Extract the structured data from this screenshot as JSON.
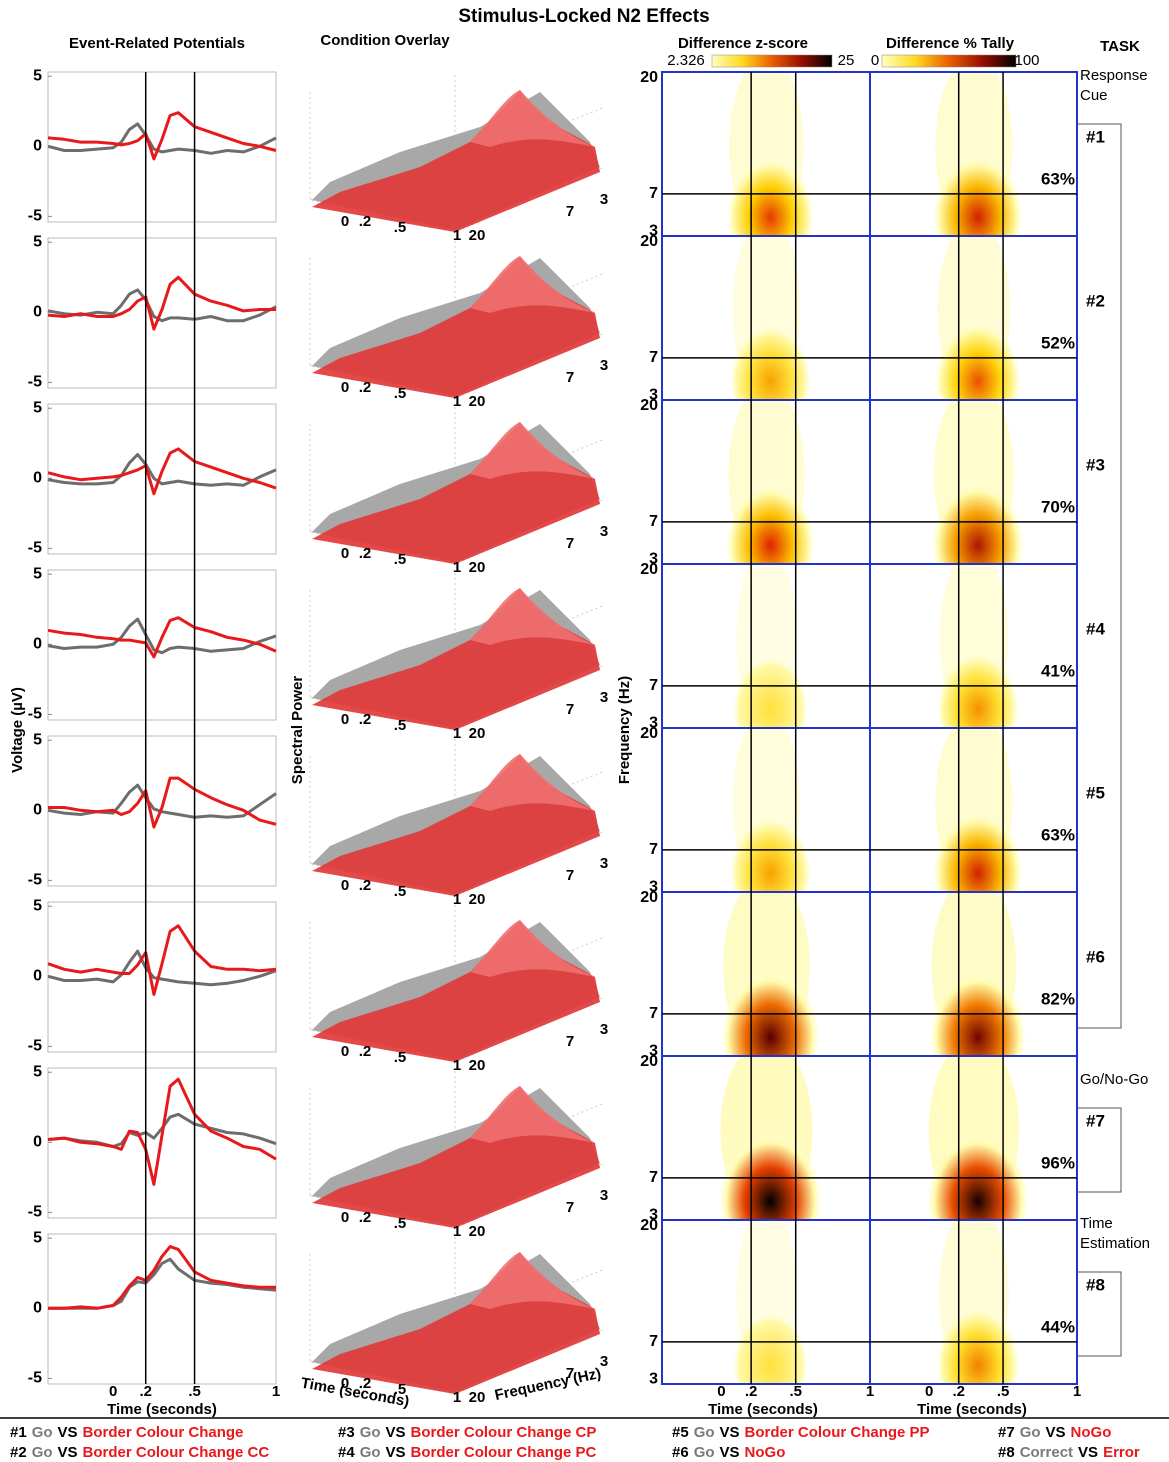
{
  "title": "Stimulus-Locked N2 Effects",
  "erp": {
    "header": "Event-Related Potentials",
    "ylabel": "Voltage (µV)",
    "xlabel": "Time (seconds)",
    "xlim": [
      -0.4,
      1
    ],
    "xticks": [
      0,
      {
        "value": 0.2,
        "label": ".2"
      },
      {
        "value": 0.5,
        "label": ".5"
      },
      1
    ],
    "ylim": [
      -5.4,
      5.3
    ],
    "yticks": [
      5,
      0,
      -5
    ],
    "x": [
      -0.4,
      -0.3,
      -0.2,
      -0.1,
      0,
      0.05,
      0.1,
      0.15,
      0.2,
      0.25,
      0.3,
      0.35,
      0.4,
      0.5,
      0.6,
      0.7,
      0.8,
      0.9,
      1
    ],
    "rows": [
      {
        "series": [
          {
            "color": "#6d6d6d",
            "values": [
              0,
              -0.3,
              -0.3,
              -0.2,
              -0.1,
              0.3,
              1.2,
              1.6,
              0.8,
              -0.2,
              -0.4,
              -0.3,
              -0.2,
              -0.3,
              -0.5,
              -0.3,
              -0.4,
              0,
              0.6
            ]
          },
          {
            "color": "#e8191b",
            "values": [
              0.6,
              0.5,
              0.3,
              0.3,
              0.2,
              0.1,
              0.2,
              0.4,
              0.9,
              -0.9,
              0.5,
              2.2,
              2.4,
              1.4,
              1.0,
              0.6,
              0.2,
              0,
              -0.3
            ]
          }
        ]
      },
      {
        "series": [
          {
            "color": "#6d6d6d",
            "values": [
              0.1,
              -0.1,
              -0.2,
              0,
              -0.1,
              0.5,
              1.3,
              1.6,
              0.9,
              -0.3,
              -0.6,
              -0.4,
              -0.4,
              -0.5,
              -0.3,
              -0.6,
              -0.6,
              -0.2,
              0.4
            ]
          },
          {
            "color": "#e8191b",
            "values": [
              -0.2,
              -0.3,
              -0.1,
              -0.3,
              -0.3,
              -0.1,
              0.2,
              0.8,
              1.1,
              -1.2,
              0.2,
              2.0,
              2.5,
              1.3,
              0.8,
              0.5,
              0.1,
              0.2,
              0.2
            ]
          }
        ]
      },
      {
        "series": [
          {
            "color": "#6d6d6d",
            "values": [
              -0.1,
              -0.3,
              -0.4,
              -0.4,
              -0.3,
              0.2,
              1.1,
              1.7,
              1.0,
              0,
              -0.4,
              -0.3,
              -0.2,
              -0.4,
              -0.5,
              -0.4,
              -0.5,
              0.1,
              0.6
            ]
          },
          {
            "color": "#e8191b",
            "values": [
              0.4,
              0.1,
              -0.1,
              0,
              0.1,
              0.2,
              0.4,
              0.6,
              0.9,
              -1.1,
              0.5,
              1.8,
              2.1,
              1.2,
              0.8,
              0.4,
              0,
              -0.3,
              -0.7
            ]
          }
        ]
      },
      {
        "series": [
          {
            "color": "#6d6d6d",
            "values": [
              -0.1,
              -0.3,
              -0.2,
              -0.2,
              0,
              0.5,
              1.3,
              1.8,
              0.7,
              -0.4,
              -0.6,
              -0.3,
              -0.2,
              -0.3,
              -0.5,
              -0.4,
              -0.3,
              0.2,
              0.6
            ]
          },
          {
            "color": "#e8191b",
            "values": [
              1.0,
              0.8,
              0.7,
              0.5,
              0.4,
              0.3,
              0.3,
              0.2,
              0.1,
              -0.9,
              0.5,
              1.7,
              1.9,
              1.2,
              0.9,
              0.5,
              0.3,
              0,
              -0.5
            ]
          }
        ]
      },
      {
        "series": [
          {
            "color": "#6d6d6d",
            "values": [
              0,
              -0.2,
              -0.3,
              -0.1,
              -0.2,
              0.5,
              1.3,
              1.8,
              0.9,
              0.1,
              -0.1,
              -0.2,
              -0.3,
              -0.5,
              -0.4,
              -0.5,
              -0.4,
              0.4,
              1.2
            ]
          },
          {
            "color": "#e8191b",
            "values": [
              0.2,
              0.2,
              0,
              -0.1,
              0,
              -0.3,
              -0.1,
              0.5,
              1.4,
              -1.2,
              0.2,
              2.3,
              2.3,
              1.5,
              0.9,
              0.4,
              0,
              -0.7,
              -1.0
            ]
          }
        ]
      },
      {
        "series": [
          {
            "color": "#6d6d6d",
            "values": [
              0,
              -0.3,
              -0.3,
              -0.2,
              -0.4,
              0.1,
              1.0,
              1.8,
              0.6,
              -0.1,
              -0.2,
              -0.3,
              -0.4,
              -0.5,
              -0.6,
              -0.5,
              -0.3,
              0,
              0.4
            ]
          },
          {
            "color": "#e8191b",
            "values": [
              0.9,
              0.5,
              0.3,
              0.5,
              0.3,
              0.2,
              0.2,
              0.8,
              1.7,
              -1.3,
              0.9,
              3.2,
              3.6,
              1.8,
              0.7,
              0.5,
              0.5,
              0.4,
              0.5
            ]
          }
        ]
      },
      {
        "series": [
          {
            "color": "#6d6d6d",
            "values": [
              0.2,
              0.3,
              0.1,
              0,
              -0.3,
              -0.1,
              0.7,
              0.5,
              0.7,
              0.3,
              1.0,
              1.8,
              2.0,
              1.3,
              1.0,
              0.7,
              0.6,
              0.3,
              -0.1
            ]
          },
          {
            "color": "#e8191b",
            "values": [
              0.2,
              0.3,
              0,
              -0.1,
              -0.3,
              -0.5,
              0.8,
              0.7,
              -0.5,
              -3.0,
              0.5,
              4.0,
              4.5,
              2.0,
              0.8,
              0.3,
              -0.3,
              -0.5,
              -1.2
            ]
          }
        ]
      },
      {
        "series": [
          {
            "color": "#6d6d6d",
            "values": [
              0,
              0,
              0,
              0,
              0.2,
              0.5,
              1.5,
              1.9,
              1.8,
              2.4,
              3.2,
              3.5,
              2.8,
              2.0,
              1.8,
              1.7,
              1.5,
              1.4,
              1.3
            ]
          },
          {
            "color": "#e8191b",
            "values": [
              0,
              0,
              0.1,
              0,
              0.2,
              0.8,
              1.6,
              2.2,
              2.0,
              2.7,
              3.7,
              4.4,
              4.2,
              2.6,
              2.0,
              1.8,
              1.6,
              1.5,
              1.5
            ]
          }
        ]
      }
    ]
  },
  "spectral": {
    "header": "Condition Overlay",
    "ylabel": "Spectral Power",
    "xlabel": "Time (seconds)",
    "flabel": "Frequency (Hz)",
    "xticks": [
      0,
      {
        "value": 0.2,
        "label": ".2"
      },
      {
        "value": 0.5,
        "label": ".5"
      },
      1
    ],
    "fticks": [
      20,
      7,
      3
    ]
  },
  "heat": {
    "zheader": "Difference z-score",
    "theader": "Difference % Tally",
    "zlim": [
      2.326,
      25
    ],
    "tlim": [
      0,
      100
    ],
    "ylabel": "Frequency (Hz)",
    "xlabel": "Time (seconds)",
    "xlim": [
      -0.4,
      1
    ],
    "xticks": [
      0,
      {
        "value": 0.2,
        "label": ".2"
      },
      {
        "value": 0.5,
        "label": ".5"
      },
      1
    ],
    "ylim": [
      2.5,
      20
    ],
    "yticks": [
      20,
      7,
      3
    ],
    "rows": [
      {
        "z_peak": 15,
        "tally": 63,
        "tally_label": "63%"
      },
      {
        "z_peak": 11,
        "tally": 52,
        "tally_label": "52%"
      },
      {
        "z_peak": 16,
        "tally": 70,
        "tally_label": "70%"
      },
      {
        "z_peak": 7,
        "tally": 41,
        "tally_label": "41%"
      },
      {
        "z_peak": 11,
        "tally": 63,
        "tally_label": "63%"
      },
      {
        "z_peak": 22,
        "tally": 82,
        "tally_label": "82%"
      },
      {
        "z_peak": 25,
        "tally": 96,
        "tally_label": "96%"
      },
      {
        "z_peak": 7,
        "tally": 44,
        "tally_label": "44%"
      }
    ]
  },
  "task": {
    "header": "TASK",
    "rows": [
      "#1",
      "#2",
      "#3",
      "#4",
      "#5",
      "#6",
      "#7",
      "#8"
    ],
    "groups": [
      {
        "lines": [
          "Response",
          "Cue"
        ],
        "first": 0,
        "last": 5
      },
      {
        "lines": [
          "Go/No-Go"
        ],
        "first": 6,
        "last": 6
      },
      {
        "lines": [
          "Time",
          "Estimation"
        ],
        "first": 7,
        "last": 7
      }
    ]
  },
  "legend": {
    "vs": "VS",
    "items": [
      {
        "id": "#1",
        "a": "Go",
        "b": "Border Colour Change"
      },
      {
        "id": "#2",
        "a": "Go",
        "b": "Border Colour Change CC"
      },
      {
        "id": "#3",
        "a": "Go",
        "b": "Border Colour Change CP"
      },
      {
        "id": "#4",
        "a": "Go",
        "b": "Border Colour Change PC"
      },
      {
        "id": "#5",
        "a": "Go",
        "b": "Border Colour Change PP"
      },
      {
        "id": "#6",
        "a": "Go",
        "b": "NoGo"
      },
      {
        "id": "#7",
        "a": "Go",
        "b": "NoGo"
      },
      {
        "id": "#8",
        "a": "Correct",
        "b": "Error"
      }
    ]
  }
}
